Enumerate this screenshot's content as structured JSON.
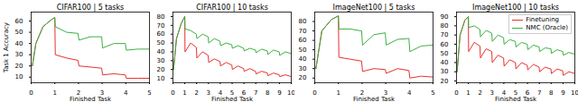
{
  "chart_data": [
    {
      "type": "line",
      "title": "CIFAR100 | 5 tasks",
      "x_label": "Finished Task",
      "y_label": "Task 1 Accuracy",
      "x": [
        0.05,
        0.2,
        0.5,
        0.9,
        1,
        1.02,
        1.5,
        1.98,
        2.02,
        2.5,
        2.98,
        3.02,
        3.5,
        3.98,
        4.02,
        4.5,
        5
      ],
      "series": [
        {
          "name": "Finetuning",
          "color": "#e8302e",
          "values": [
            20,
            40,
            55,
            62,
            63,
            30,
            27,
            25,
            20,
            19,
            18,
            12,
            13,
            12,
            9,
            9,
            9
          ]
        },
        {
          "name": "NMC (Oracle)",
          "color": "#3cb043",
          "values": [
            20,
            40,
            55,
            62,
            63,
            55,
            50,
            49,
            43,
            46,
            46,
            36,
            40,
            40,
            34,
            35,
            35
          ]
        }
      ],
      "xlim": [
        0,
        5
      ],
      "xticks": [
        0,
        1,
        2,
        3,
        4,
        5
      ],
      "ylim": [
        5,
        68
      ],
      "yticks": [
        10,
        20,
        30,
        40,
        50,
        60
      ],
      "grid": false
    },
    {
      "type": "line",
      "title": "CIFAR100 | 10 tasks",
      "x_label": "Finished Task",
      "x": [
        0.05,
        0.3,
        0.7,
        1,
        1.02,
        1.5,
        1.98,
        2.02,
        2.5,
        2.98,
        3.02,
        3.5,
        3.98,
        4.02,
        4.5,
        4.98,
        5.02,
        5.5,
        5.98,
        6.02,
        6.5,
        6.98,
        7.02,
        7.5,
        7.98,
        8.02,
        8.5,
        8.98,
        9.02,
        9.5,
        10
      ],
      "series": [
        {
          "name": "Finetuning",
          "color": "#e8302e",
          "values": [
            20,
            55,
            72,
            80,
            40,
            50,
            45,
            33,
            40,
            36,
            28,
            32,
            29,
            24,
            28,
            25,
            20,
            24,
            21,
            18,
            21,
            18,
            15,
            18,
            16,
            13,
            16,
            14,
            12,
            14,
            12
          ]
        },
        {
          "name": "NMC (Oracle)",
          "color": "#3cb043",
          "values": [
            20,
            55,
            72,
            80,
            66,
            64,
            60,
            55,
            60,
            57,
            50,
            55,
            52,
            47,
            50,
            48,
            44,
            47,
            44,
            41,
            44,
            42,
            39,
            43,
            41,
            37,
            42,
            40,
            36,
            40,
            38
          ]
        }
      ],
      "xlim": [
        0,
        10
      ],
      "xticks": [
        0,
        1,
        2,
        3,
        4,
        5,
        6,
        7,
        8,
        9,
        10
      ],
      "ylim": [
        5,
        85
      ],
      "yticks": [
        10,
        20,
        30,
        40,
        50,
        60,
        70,
        80
      ],
      "grid": false
    },
    {
      "type": "line",
      "title": "ImageNet100 | 5 tasks",
      "x_label": "Finished Task",
      "x": [
        0.05,
        0.3,
        0.7,
        1,
        1.02,
        1.5,
        1.98,
        2.02,
        2.5,
        2.98,
        3.02,
        3.5,
        3.98,
        4.02,
        4.5,
        5
      ],
      "series": [
        {
          "name": "Finetuning",
          "color": "#e8302e",
          "values": [
            30,
            70,
            82,
            86,
            42,
            40,
            38,
            27,
            30,
            29,
            25,
            30,
            28,
            20,
            22,
            21
          ]
        },
        {
          "name": "NMC (Oracle)",
          "color": "#3cb043",
          "values": [
            30,
            70,
            82,
            86,
            72,
            72,
            70,
            55,
            66,
            68,
            55,
            61,
            62,
            48,
            54,
            55
          ]
        }
      ],
      "xlim": [
        0,
        5
      ],
      "xticks": [
        0,
        1,
        2,
        3,
        4,
        5
      ],
      "ylim": [
        15,
        90
      ],
      "yticks": [
        20,
        30,
        40,
        50,
        60,
        70,
        80
      ],
      "grid": false
    },
    {
      "type": "line",
      "title": "ImageNet100 | 10 tasks",
      "x_label": "Finished Task",
      "legend": "top-right",
      "x": [
        0.05,
        0.3,
        0.7,
        1,
        1.02,
        1.5,
        1.98,
        2.02,
        2.5,
        2.98,
        3.02,
        3.5,
        3.98,
        4.02,
        4.5,
        4.98,
        5.02,
        5.5,
        5.98,
        6.02,
        6.5,
        6.98,
        7.02,
        7.5,
        7.98,
        8.02,
        8.5,
        8.98,
        9.02,
        9.5,
        10
      ],
      "series": [
        {
          "name": "Finetuning",
          "color": "#e8302e",
          "values": [
            30,
            70,
            86,
            90,
            52,
            62,
            58,
            45,
            55,
            52,
            40,
            48,
            45,
            36,
            43,
            40,
            33,
            40,
            37,
            32,
            38,
            35,
            30,
            35,
            33,
            28,
            33,
            31,
            26,
            30,
            28
          ]
        },
        {
          "name": "NMC (Oracle)",
          "color": "#3cb043",
          "values": [
            30,
            70,
            86,
            90,
            78,
            80,
            76,
            68,
            75,
            72,
            63,
            70,
            67,
            60,
            65,
            63,
            57,
            62,
            60,
            54,
            59,
            57,
            52,
            56,
            55,
            50,
            54,
            52,
            48,
            51,
            49
          ]
        }
      ],
      "xlim": [
        0,
        10
      ],
      "xticks": [
        0,
        1,
        2,
        3,
        4,
        5,
        6,
        7,
        8,
        9,
        10
      ],
      "ylim": [
        18,
        95
      ],
      "yticks": [
        20,
        30,
        40,
        50,
        60,
        70,
        80,
        90
      ],
      "grid": false
    }
  ]
}
